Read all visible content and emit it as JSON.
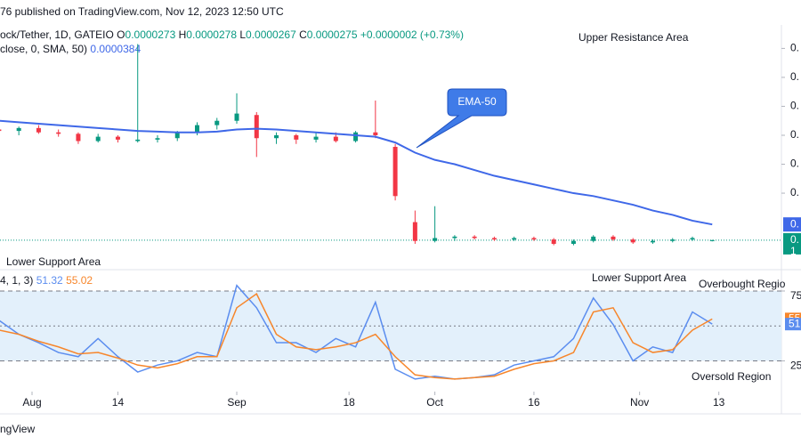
{
  "header": {
    "published": "76 published on TradingView.com, Nov 12, 2023 12:50 UTC",
    "symbol": "ock/Tether, 1D, GATEIO",
    "ohlc_letters": [
      "O",
      "H",
      "L",
      "C"
    ],
    "change": "+0.0000002 (+0.73%)",
    "ma_label": "close, 0, SMA, 50)"
  },
  "footer": "ngView",
  "chart_data": [
    {
      "type": "candlestick",
      "x": [
        "Jul 27",
        "Jul 30",
        "Aug 2",
        "Aug 5",
        "Aug 8",
        "Aug 11",
        "Aug 14",
        "Aug 17",
        "Aug 20",
        "Aug 23",
        "Aug 26",
        "Aug 29",
        "Sep 1",
        "Sep 4",
        "Sep 7",
        "Sep 10",
        "Sep 13",
        "Sep 16",
        "Sep 19",
        "Sep 22",
        "Sep 25",
        "Sep 28",
        "Oct 1",
        "Oct 4",
        "Oct 7",
        "Oct 10",
        "Oct 13",
        "Oct 16",
        "Oct 19",
        "Oct 22",
        "Oct 25",
        "Oct 28",
        "Oct 31",
        "Nov 3",
        "Nov 6",
        "Nov 9",
        "Nov 12"
      ],
      "open": [
        0.000104,
        0.000103,
        0.000105,
        0.000102,
        0.000101,
        9.6e-05,
        9.9e-05,
        9.6e-05,
        9.7e-05,
        9.8e-05,
        0.000102,
        0.000107,
        0.00011,
        0.000114,
        9.8e-05,
        0.0001,
        9.7e-05,
        9.9e-05,
        9.6e-05,
        0.000102,
        9.2e-05,
        4e-05,
        2.7e-05,
        2.9e-05,
        3e-05,
        2.9e-05,
        2.8e-05,
        2.9e-05,
        2.8e-05,
        2.5e-05,
        2.7e-05,
        3e-05,
        2.8e-05,
        2.6e-05,
        2.7e-05,
        2.8e-05,
        2.73e-05
      ],
      "high": [
        0.000107,
        0.000106,
        0.000107,
        0.000104,
        0.000102,
        0.000101,
        0.0001,
        0.000163,
        0.0001,
        0.000103,
        0.000109,
        0.000112,
        0.000129,
        0.000116,
        0.000102,
        0.000101,
        0.000102,
        0.000102,
        0.000103,
        0.000124,
        9.4e-05,
        4.8e-05,
        5.1e-05,
        3.1e-05,
        3.1e-05,
        3e-05,
        3e-05,
        3e-05,
        2.9e-05,
        2.8e-05,
        3.1e-05,
        3.1e-05,
        2.9e-05,
        2.8e-05,
        2.9e-05,
        3e-05,
        2.78e-05
      ],
      "low": [
        0.000101,
        0.0001,
        0.000101,
        9.9e-05,
        9.4e-05,
        9.5e-05,
        9.5e-05,
        9.5e-05,
        9.5e-05,
        9.6e-05,
        0.0001,
        0.000104,
        0.000108,
        8.5e-05,
        9.4e-05,
        9.4e-05,
        9.5e-05,
        9.5e-05,
        9.5e-05,
        9.8e-05,
        5.5e-05,
        2.5e-05,
        2.6e-05,
        2.7e-05,
        2.8e-05,
        2.7e-05,
        2.7e-05,
        2.7e-05,
        2.4e-05,
        2.4e-05,
        2.6e-05,
        2.7e-05,
        2.5e-05,
        2.5e-05,
        2.6e-05,
        2.7e-05,
        2.67e-05
      ],
      "close": [
        0.000103,
        0.000105,
        0.000102,
        0.000101,
        9.6e-05,
        9.9e-05,
        9.7e-05,
        9.7e-05,
        9.8e-05,
        0.000102,
        0.000107,
        0.00011,
        0.000115,
        9.8e-05,
        0.0001,
        9.7e-05,
        9.9e-05,
        9.6e-05,
        0.000102,
        0.0001,
        5.8e-05,
        2.7e-05,
        2.9e-05,
        3e-05,
        2.9e-05,
        2.8e-05,
        2.9e-05,
        2.8e-05,
        2.5e-05,
        2.7e-05,
        3e-05,
        2.8e-05,
        2.6e-05,
        2.7e-05,
        2.8e-05,
        2.9e-05,
        2.75e-05
      ],
      "up_color": "#089981",
      "down_color": "#f23645",
      "ema": {
        "color": "#3f68e8",
        "values": [
          0.00011,
          0.000109,
          0.000108,
          0.000107,
          0.000106,
          0.000105,
          0.000104,
          0.000103,
          0.0001025,
          0.000102,
          0.000102,
          0.0001025,
          0.000104,
          0.0001045,
          0.000104,
          0.000103,
          0.000102,
          0.000101,
          0.0001,
          9.9e-05,
          9.5e-05,
          8.8e-05,
          8.3e-05,
          8e-05,
          7.6e-05,
          7.2e-05,
          6.9e-05,
          6.6e-05,
          6.3e-05,
          6e-05,
          5.8e-05,
          5.5e-05,
          5.2e-05,
          4.8e-05,
          4.5e-05,
          4.1e-05,
          3.84e-05
        ]
      },
      "ylim": [
        9e-06,
        0.000175
      ],
      "yticks": [
        {
          "value": 6e-05,
          "label": "0."
        },
        {
          "value": 8e-05,
          "label": "0."
        },
        {
          "value": 0.0001,
          "label": "0."
        },
        {
          "value": 0.00012,
          "label": "0."
        },
        {
          "value": 0.00014,
          "label": "0."
        },
        {
          "value": 0.00016,
          "label": "0."
        }
      ],
      "ema_badge": "0.",
      "price_badge": [
        "0.",
        "1"
      ],
      "annotations": [
        "Upper Resistance Area",
        "EMA-50",
        "Lower Support Area"
      ]
    },
    {
      "type": "line",
      "indicator_label": "4, 1, 3)",
      "x": [
        "Jul 27",
        "Jul 30",
        "Aug 2",
        "Aug 5",
        "Aug 8",
        "Aug 11",
        "Aug 14",
        "Aug 17",
        "Aug 20",
        "Aug 23",
        "Aug 26",
        "Aug 29",
        "Sep 1",
        "Sep 4",
        "Sep 7",
        "Sep 10",
        "Sep 13",
        "Sep 16",
        "Sep 19",
        "Sep 22",
        "Sep 25",
        "Sep 28",
        "Oct 1",
        "Oct 4",
        "Oct 7",
        "Oct 10",
        "Oct 13",
        "Oct 16",
        "Oct 19",
        "Oct 22",
        "Oct 25",
        "Oct 28",
        "Oct 31",
        "Nov 3",
        "Nov 6",
        "Nov 9",
        "Nov 12"
      ],
      "series": [
        {
          "color": "#5b8def",
          "values": [
            54,
            44,
            38,
            31,
            28,
            41,
            28,
            17,
            22,
            25,
            31,
            28,
            79,
            63,
            38,
            38,
            31,
            41,
            35,
            67,
            19,
            12,
            14,
            12,
            13,
            15,
            22,
            25,
            28,
            41,
            70,
            51,
            25,
            35,
            31,
            60,
            51.32
          ]
        },
        {
          "color": "#f7862b",
          "values": [
            47,
            44,
            39,
            35,
            30,
            31,
            27,
            22,
            20,
            23,
            28,
            28,
            63,
            73,
            44,
            35,
            33,
            35,
            38,
            44,
            28,
            15,
            13,
            12,
            13,
            14,
            19,
            23,
            25,
            31,
            60,
            63,
            38,
            31,
            33,
            47,
            55.02
          ]
        }
      ],
      "ylim": [
        3,
        89
      ],
      "yticks": [
        25,
        75
      ],
      "levels": [
        75,
        50,
        25
      ],
      "band_color": "#e3f0fb",
      "xticks": [
        {
          "value": "Aug 1",
          "label": "Aug"
        },
        {
          "value": "Aug 14",
          "label": "14"
        },
        {
          "value": "Sep 1",
          "label": "Sep"
        },
        {
          "value": "Sep 18",
          "label": "18"
        },
        {
          "value": "Oct 1",
          "label": "Oct"
        },
        {
          "value": "Oct 16",
          "label": "16"
        },
        {
          "value": "Nov 1",
          "label": "Nov"
        },
        {
          "value": "Nov 13",
          "label": "13"
        }
      ],
      "annotations": [
        "Lower Support Area",
        "Overbought Regio",
        "Oversold Region"
      ]
    }
  ]
}
